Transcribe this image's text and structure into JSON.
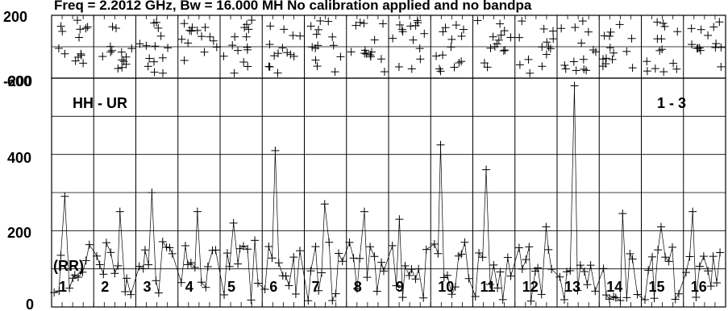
{
  "chart_data": {
    "type": "scatter",
    "title": "Freq = 2.2012 GHz, Bw = 16.000 MH  No calibration applied and no bandpa",
    "baseline": "HH - UR",
    "pol_label": "(RR)",
    "page_label": "1 - 3",
    "top_panel": {
      "ylabel_left": "200",
      "ylabel_right": "-200",
      "ylim": [
        -200,
        200
      ],
      "grid": true
    },
    "bottom_panel": {
      "yticks": [
        "0",
        "200",
        "400",
        "600"
      ],
      "ylim": [
        0,
        600
      ],
      "grid": true
    },
    "scan_labels": [
      "1",
      "2",
      "3",
      "4",
      "5",
      "6",
      "7",
      "8",
      "9",
      "10",
      "11",
      "12",
      "13",
      "14",
      "15",
      "16"
    ],
    "amplitude_peaks": [
      {
        "scan": "1",
        "value": 290
      },
      {
        "scan": "2",
        "value": 250
      },
      {
        "scan": "3",
        "value": 300
      },
      {
        "scan": "4",
        "value": 250
      },
      {
        "scan": "5",
        "value": 220
      },
      {
        "scan": "6",
        "value": 410
      },
      {
        "scan": "7",
        "value": 270
      },
      {
        "scan": "8",
        "value": 250
      },
      {
        "scan": "9",
        "value": 230
      },
      {
        "scan": "10",
        "value": 425
      },
      {
        "scan": "11",
        "value": 360
      },
      {
        "scan": "12",
        "value": 210
      },
      {
        "scan": "13",
        "value": 580
      },
      {
        "scan": "14",
        "value": 245
      },
      {
        "scan": "15",
        "value": 210
      },
      {
        "scan": "16",
        "value": 250
      }
    ]
  }
}
